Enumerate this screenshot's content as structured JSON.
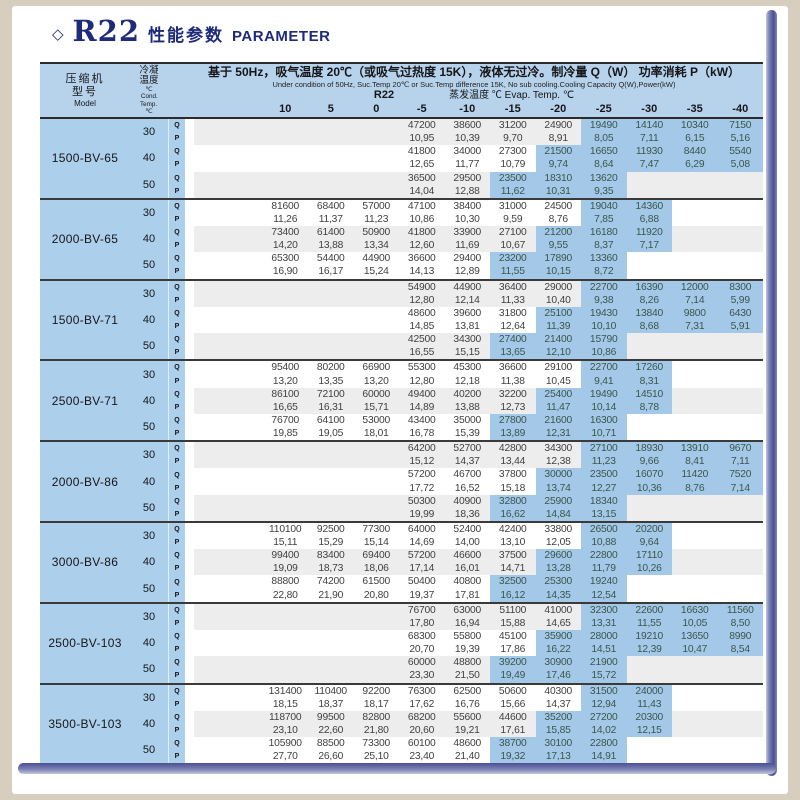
{
  "title": {
    "diamond": "◇",
    "refrigerant": "R22",
    "zh": "性能参数",
    "en": "PARAMETER"
  },
  "colors": {
    "header_blue": "#b6d3eb",
    "panel_blue": "#accfeb",
    "highlight_blue": "#a4c9e8",
    "band_grey": "#ededed",
    "title_navy": "#1e2a7a",
    "highlight_text": "#3a564c",
    "value_text": "#414141",
    "page_edge": "#4a4f91"
  },
  "table": {
    "left": {
      "model_lines": [
        "压缩机",
        "型号",
        "Model"
      ],
      "cond_lines": [
        "冷凝",
        "温度",
        "℃",
        "Cond.",
        "Temp.",
        "℃"
      ]
    },
    "header": {
      "condition_zh": "基于 50Hz，吸气温度 20℃（或吸气过热度 15K），液体无过冷。制冷量 Q（W）  功率消耗 P（kW）",
      "condition_en": "Under condition of 50Hz, Suc.Temp 20℃ or Suc.Temp difference 15K, No sub cooling.Cooling Capacity Q(W),Power(kW)",
      "refrigerant": "R22",
      "evap_label": "蒸发温度 ℃ Evap. Temp. ℃"
    },
    "temp_cols": [
      "10",
      "5",
      "0",
      "-5",
      "-10",
      "-15",
      "-20",
      "-25",
      "-30",
      "-35",
      "-40"
    ],
    "qp": {
      "q": "Q",
      "p": "P"
    },
    "blocks": [
      {
        "model": "1500-BV-65",
        "rows": [
          {
            "cond": "30",
            "shaded": true,
            "hl": [
              7,
              10
            ],
            "q": [
              "",
              "",
              "",
              "47200",
              "38600",
              "31200",
              "24900",
              "19490",
              "14140",
              "10340",
              "7150"
            ],
            "p": [
              "",
              "",
              "",
              "10,95",
              "10,39",
              "9,70",
              "8,91",
              "8,05",
              "7,11",
              "6,15",
              "5,16"
            ]
          },
          {
            "cond": "40",
            "shaded": false,
            "hl": [
              6,
              10
            ],
            "q": [
              "",
              "",
              "",
              "41800",
              "34000",
              "27300",
              "21500",
              "16650",
              "11930",
              "8440",
              "5540"
            ],
            "p": [
              "",
              "",
              "",
              "12,65",
              "11,77",
              "10,79",
              "9,74",
              "8,64",
              "7,47",
              "6,29",
              "5,08"
            ]
          },
          {
            "cond": "50",
            "shaded": true,
            "hl": [
              5,
              7
            ],
            "q": [
              "",
              "",
              "",
              "36500",
              "29500",
              "23500",
              "18310",
              "13620",
              "",
              "",
              ""
            ],
            "p": [
              "",
              "",
              "",
              "14,04",
              "12,88",
              "11,62",
              "10,31",
              "9,35",
              "",
              "",
              ""
            ]
          }
        ]
      },
      {
        "model": "2000-BV-65",
        "rows": [
          {
            "cond": "30",
            "shaded": false,
            "hl": [
              7,
              8
            ],
            "q": [
              "81600",
              "68400",
              "57000",
              "47100",
              "38400",
              "31000",
              "24500",
              "19040",
              "14360",
              "",
              ""
            ],
            "p": [
              "11,26",
              "11,37",
              "11,23",
              "10,86",
              "10,30",
              "9,59",
              "8,76",
              "7,85",
              "6,88",
              "",
              ""
            ]
          },
          {
            "cond": "40",
            "shaded": true,
            "hl": [
              6,
              8
            ],
            "q": [
              "73400",
              "61400",
              "50900",
              "41800",
              "33900",
              "27100",
              "21200",
              "16180",
              "11920",
              "",
              ""
            ],
            "p": [
              "14,20",
              "13,88",
              "13,34",
              "12,60",
              "11,69",
              "10,67",
              "9,55",
              "8,37",
              "7,17",
              "",
              ""
            ]
          },
          {
            "cond": "50",
            "shaded": false,
            "hl": [
              5,
              7
            ],
            "q": [
              "65300",
              "54400",
              "44900",
              "36600",
              "29400",
              "23200",
              "17890",
              "13360",
              "",
              "",
              ""
            ],
            "p": [
              "16,90",
              "16,17",
              "15,24",
              "14,13",
              "12,89",
              "11,55",
              "10,15",
              "8,72",
              "",
              "",
              ""
            ]
          }
        ]
      },
      {
        "model": "1500-BV-71",
        "rows": [
          {
            "cond": "30",
            "shaded": true,
            "hl": [
              7,
              10
            ],
            "q": [
              "",
              "",
              "",
              "54900",
              "44900",
              "36400",
              "29000",
              "22700",
              "16390",
              "12000",
              "8300"
            ],
            "p": [
              "",
              "",
              "",
              "12,80",
              "12,14",
              "11,33",
              "10,40",
              "9,38",
              "8,26",
              "7,14",
              "5,99"
            ]
          },
          {
            "cond": "40",
            "shaded": false,
            "hl": [
              6,
              10
            ],
            "q": [
              "",
              "",
              "",
              "48600",
              "39600",
              "31800",
              "25100",
              "19430",
              "13840",
              "9800",
              "6430"
            ],
            "p": [
              "",
              "",
              "",
              "14,85",
              "13,81",
              "12,64",
              "11,39",
              "10,10",
              "8,68",
              "7,31",
              "5,91"
            ]
          },
          {
            "cond": "50",
            "shaded": true,
            "hl": [
              5,
              7
            ],
            "q": [
              "",
              "",
              "",
              "42500",
              "34300",
              "27400",
              "21400",
              "15790",
              "",
              "",
              ""
            ],
            "p": [
              "",
              "",
              "",
              "16,55",
              "15,15",
              "13,65",
              "12,10",
              "10,86",
              "",
              "",
              ""
            ]
          }
        ]
      },
      {
        "model": "2500-BV-71",
        "rows": [
          {
            "cond": "30",
            "shaded": false,
            "hl": [
              7,
              8
            ],
            "q": [
              "95400",
              "80200",
              "66900",
              "55300",
              "45300",
              "36600",
              "29100",
              "22700",
              "17260",
              "",
              ""
            ],
            "p": [
              "13,20",
              "13,35",
              "13,20",
              "12,80",
              "12,18",
              "11,38",
              "10,45",
              "9,41",
              "8,31",
              "",
              ""
            ]
          },
          {
            "cond": "40",
            "shaded": true,
            "hl": [
              6,
              8
            ],
            "q": [
              "86100",
              "72100",
              "60000",
              "49400",
              "40200",
              "32200",
              "25400",
              "19490",
              "14510",
              "",
              ""
            ],
            "p": [
              "16,65",
              "16,31",
              "15,71",
              "14,89",
              "13,88",
              "12,73",
              "11,47",
              "10,14",
              "8,78",
              "",
              ""
            ]
          },
          {
            "cond": "50",
            "shaded": false,
            "hl": [
              5,
              7
            ],
            "q": [
              "76700",
              "64100",
              "53000",
              "43400",
              "35000",
              "27800",
              "21600",
              "16300",
              "",
              "",
              ""
            ],
            "p": [
              "19,85",
              "19,05",
              "18,01",
              "16,78",
              "15,39",
              "13,89",
              "12,31",
              "10,71",
              "",
              "",
              ""
            ]
          }
        ]
      },
      {
        "model": "2000-BV-86",
        "rows": [
          {
            "cond": "30",
            "shaded": true,
            "hl": [
              7,
              10
            ],
            "q": [
              "",
              "",
              "",
              "64200",
              "52700",
              "42800",
              "34300",
              "27100",
              "18930",
              "13910",
              "9670"
            ],
            "p": [
              "",
              "",
              "",
              "15,12",
              "14,37",
              "13,44",
              "12,38",
              "11,23",
              "9,66",
              "8,41",
              "7,11"
            ]
          },
          {
            "cond": "40",
            "shaded": false,
            "hl": [
              6,
              10
            ],
            "q": [
              "",
              "",
              "",
              "57200",
              "46700",
              "37800",
              "30000",
              "23500",
              "16070",
              "11420",
              "7520"
            ],
            "p": [
              "",
              "",
              "",
              "17,72",
              "16,52",
              "15,18",
              "13,74",
              "12,27",
              "10,36",
              "8,76",
              "7,14"
            ]
          },
          {
            "cond": "50",
            "shaded": true,
            "hl": [
              5,
              7
            ],
            "q": [
              "",
              "",
              "",
              "50300",
              "40900",
              "32800",
              "25900",
              "18340",
              "",
              "",
              ""
            ],
            "p": [
              "",
              "",
              "",
              "19,99",
              "18,36",
              "16,62",
              "14,84",
              "13,15",
              "",
              "",
              ""
            ]
          }
        ]
      },
      {
        "model": "3000-BV-86",
        "rows": [
          {
            "cond": "30",
            "shaded": false,
            "hl": [
              7,
              8
            ],
            "q": [
              "110100",
              "92500",
              "77300",
              "64000",
              "52400",
              "42400",
              "33800",
              "26500",
              "20200",
              "",
              ""
            ],
            "p": [
              "15,11",
              "15,29",
              "15,14",
              "14,69",
              "14,00",
              "13,10",
              "12,05",
              "10,88",
              "9,64",
              "",
              ""
            ]
          },
          {
            "cond": "40",
            "shaded": true,
            "hl": [
              6,
              8
            ],
            "q": [
              "99400",
              "83400",
              "69400",
              "57200",
              "46600",
              "37500",
              "29600",
              "22800",
              "17110",
              "",
              ""
            ],
            "p": [
              "19,09",
              "18,73",
              "18,06",
              "17,14",
              "16,01",
              "14,71",
              "13,28",
              "11,79",
              "10,26",
              "",
              ""
            ]
          },
          {
            "cond": "50",
            "shaded": false,
            "hl": [
              5,
              7
            ],
            "q": [
              "88800",
              "74200",
              "61500",
              "50400",
              "40800",
              "32500",
              "25300",
              "19240",
              "",
              "",
              ""
            ],
            "p": [
              "22,80",
              "21,90",
              "20,80",
              "19,37",
              "17,81",
              "16,12",
              "14,35",
              "12,54",
              "",
              "",
              ""
            ]
          }
        ]
      },
      {
        "model": "2500-BV-103",
        "rows": [
          {
            "cond": "30",
            "shaded": true,
            "hl": [
              7,
              10
            ],
            "q": [
              "",
              "",
              "",
              "76700",
              "63000",
              "51100",
              "41000",
              "32300",
              "22600",
              "16630",
              "11560"
            ],
            "p": [
              "",
              "",
              "",
              "17,80",
              "16,94",
              "15,88",
              "14,65",
              "13,31",
              "11,55",
              "10,05",
              "8,50"
            ]
          },
          {
            "cond": "40",
            "shaded": false,
            "hl": [
              6,
              10
            ],
            "q": [
              "",
              "",
              "",
              "68300",
              "55800",
              "45100",
              "35900",
              "28000",
              "19210",
              "13650",
              "8990"
            ],
            "p": [
              "",
              "",
              "",
              "20,70",
              "19,39",
              "17,86",
              "16,22",
              "14,51",
              "12,39",
              "10,47",
              "8,54"
            ]
          },
          {
            "cond": "50",
            "shaded": true,
            "hl": [
              5,
              7
            ],
            "q": [
              "",
              "",
              "",
              "60000",
              "48800",
              "39200",
              "30900",
              "21900",
              "",
              "",
              ""
            ],
            "p": [
              "",
              "",
              "",
              "23,30",
              "21,50",
              "19,49",
              "17,46",
              "15,72",
              "",
              "",
              ""
            ]
          }
        ]
      },
      {
        "model": "3500-BV-103",
        "rows": [
          {
            "cond": "30",
            "shaded": false,
            "hl": [
              7,
              8
            ],
            "q": [
              "131400",
              "110400",
              "92200",
              "76300",
              "62500",
              "50600",
              "40300",
              "31500",
              "24000",
              "",
              ""
            ],
            "p": [
              "18,15",
              "18,37",
              "18,17",
              "17,62",
              "16,76",
              "15,66",
              "14,37",
              "12,94",
              "11,43",
              "",
              ""
            ]
          },
          {
            "cond": "40",
            "shaded": true,
            "hl": [
              6,
              8
            ],
            "q": [
              "118700",
              "99500",
              "82800",
              "68200",
              "55600",
              "44600",
              "35200",
              "27200",
              "20300",
              "",
              ""
            ],
            "p": [
              "23,10",
              "22,60",
              "21,80",
              "20,60",
              "19,21",
              "17,61",
              "15,85",
              "14,02",
              "12,15",
              "",
              ""
            ]
          },
          {
            "cond": "50",
            "shaded": false,
            "hl": [
              5,
              7
            ],
            "q": [
              "105900",
              "88500",
              "73300",
              "60100",
              "48600",
              "38700",
              "30100",
              "22800",
              "",
              "",
              ""
            ],
            "p": [
              "27,70",
              "26,60",
              "25,10",
              "23,40",
              "21,40",
              "19,32",
              "17,13",
              "14,91",
              "",
              "",
              ""
            ]
          }
        ]
      }
    ]
  }
}
